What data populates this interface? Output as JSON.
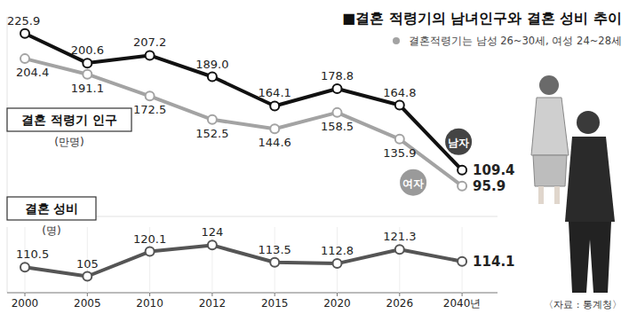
{
  "chart_data": [
    {
      "type": "line",
      "title": "■결혼 적령기의 남녀인구와 결혼 성비 추이",
      "subtitle": "결혼적령기는 남성 26~30세, 여성 24~28세",
      "ylabel": "결혼 적령기 인구",
      "yunit": "(만명)",
      "categories": [
        "2000",
        "2005",
        "2010",
        "2012",
        "2015",
        "2020",
        "2026",
        "2040년"
      ],
      "ylim": [
        70,
        240
      ],
      "tick_labels": false,
      "data_labels": true,
      "marker": "circle",
      "series": [
        {
          "name": "남자",
          "color": "#111111",
          "values": [
            225.9,
            200.6,
            207.2,
            189.0,
            164.1,
            178.8,
            164.8,
            109.4
          ],
          "value_labels": [
            "225.9",
            "200.6",
            "207.2",
            "189.0",
            "164.1",
            "178.8",
            "164.8",
            "109.4"
          ]
        },
        {
          "name": "여자",
          "color": "#a3a3a3",
          "values": [
            204.4,
            191.1,
            172.5,
            152.5,
            144.6,
            158.5,
            135.9,
            95.9
          ]
        }
      ]
    },
    {
      "type": "line",
      "ylabel": "결혼 성비",
      "yunit": "(명)",
      "source": "〈자료 : 통계청〉",
      "categories": [
        "2000",
        "2005",
        "2010",
        "2012",
        "2015",
        "2020",
        "2026",
        "2040년"
      ],
      "ylim": [
        95,
        135
      ],
      "tick_labels": "x",
      "data_labels": true,
      "marker": "circle",
      "series": [
        {
          "name": "결혼 성비",
          "color": "#555555",
          "values": [
            110.5,
            105,
            120.1,
            124,
            113.5,
            112.8,
            121.3,
            114.1
          ]
        }
      ]
    }
  ]
}
